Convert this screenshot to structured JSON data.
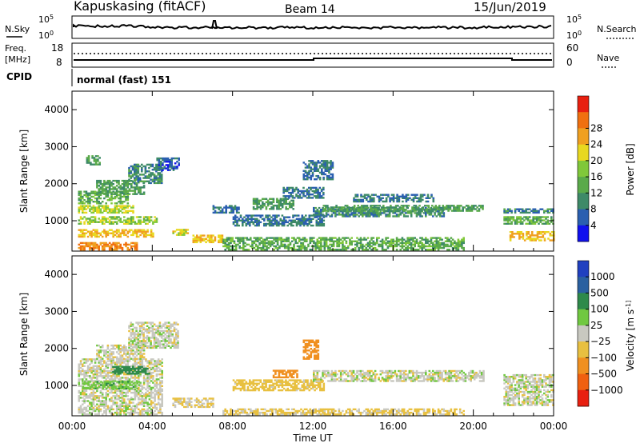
{
  "header": {
    "station": "Kapuskasing (fitACF)",
    "beam": "Beam 14",
    "date": "15/Jun/2019"
  },
  "noise_panel": {
    "left_label": "N.Sky",
    "right_label": "N.Search",
    "left_ticks": [
      "10^5",
      "10^0"
    ],
    "right_ticks": [
      "10^5",
      "10^0"
    ]
  },
  "freq_panel": {
    "left_label_line1": "Freq.",
    "left_label_line2": "[MHz]",
    "right_label": "Nave",
    "left_ticks": [
      "18",
      "8"
    ],
    "right_ticks": [
      "60",
      "0"
    ]
  },
  "cpid_panel": {
    "label": "CPID",
    "text": "normal (fast) 151"
  },
  "chart_data": [
    {
      "type": "heatmap",
      "name": "power",
      "ylabel": "Slant Range [km]",
      "ylim": [
        180,
        4500
      ],
      "yticks": [
        1000,
        2000,
        3000,
        4000
      ],
      "xlim_hours": [
        0,
        24
      ],
      "xticks": [
        "00:00",
        "04:00",
        "08:00",
        "12:00",
        "16:00",
        "20:00",
        "00:00"
      ],
      "colorbar": {
        "label": "Power [dB]",
        "ticks": [
          "4",
          "8",
          "12",
          "16",
          "20",
          "24",
          "28"
        ],
        "colors": [
          "#1010ee",
          "#2a5fb0",
          "#3e8a68",
          "#5aaa4a",
          "#80c83a",
          "#e8d820",
          "#f0a020",
          "#f07010",
          "#e82010"
        ]
      },
      "regions": [
        {
          "t": [
            0.3,
            3.2
          ],
          "r": [
            200,
            400
          ],
          "v": 28
        },
        {
          "t": [
            0.3,
            4.0
          ],
          "r": [
            550,
            750
          ],
          "v": 24
        },
        {
          "t": [
            0.3,
            4.2
          ],
          "r": [
            900,
            1100
          ],
          "v": 18
        },
        {
          "t": [
            0.3,
            3.0
          ],
          "r": [
            1200,
            1400
          ],
          "v": 20
        },
        {
          "t": [
            0.3,
            2.8
          ],
          "r": [
            1450,
            1800
          ],
          "v": 14
        },
        {
          "t": [
            1.2,
            3.6
          ],
          "r": [
            1700,
            2100
          ],
          "v": 12
        },
        {
          "t": [
            2.8,
            4.5
          ],
          "r": [
            2000,
            2500
          ],
          "v": 10
        },
        {
          "t": [
            4.2,
            5.3
          ],
          "r": [
            2350,
            2700
          ],
          "v": 6
        },
        {
          "t": [
            5.0,
            5.8
          ],
          "r": [
            600,
            750
          ],
          "v": 22
        },
        {
          "t": [
            6.0,
            7.5
          ],
          "r": [
            400,
            600
          ],
          "v": 24
        },
        {
          "t": [
            7.0,
            8.3
          ],
          "r": [
            1200,
            1400
          ],
          "v": 8
        },
        {
          "t": [
            8.0,
            12.5
          ],
          "r": [
            850,
            1150
          ],
          "v": 8
        },
        {
          "t": [
            9.0,
            11.0
          ],
          "r": [
            1300,
            1600
          ],
          "v": 12
        },
        {
          "t": [
            10.5,
            12.5
          ],
          "r": [
            1600,
            1900
          ],
          "v": 8
        },
        {
          "t": [
            12.0,
            18.5
          ],
          "r": [
            1100,
            1350
          ],
          "v": 10
        },
        {
          "t": [
            12.5,
            20.5
          ],
          "r": [
            1250,
            1400
          ],
          "v": 12
        },
        {
          "t": [
            14.0,
            18.0
          ],
          "r": [
            1500,
            1700
          ],
          "v": 8
        },
        {
          "t": [
            7.5,
            19.5
          ],
          "r": [
            200,
            520
          ],
          "v": 14
        },
        {
          "t": [
            21.5,
            24.0
          ],
          "r": [
            900,
            1100
          ],
          "v": 14
        },
        {
          "t": [
            21.8,
            24.0
          ],
          "r": [
            450,
            700
          ],
          "v": 24
        },
        {
          "t": [
            21.5,
            24.0
          ],
          "r": [
            1200,
            1300
          ],
          "v": 10
        },
        {
          "t": [
            0.7,
            1.4
          ],
          "r": [
            2500,
            2750
          ],
          "v": 12
        },
        {
          "t": [
            11.5,
            13.0
          ],
          "r": [
            2100,
            2600
          ],
          "v": 8
        }
      ]
    },
    {
      "type": "heatmap",
      "name": "velocity",
      "ylabel": "Slant Range [km]",
      "ylim": [
        180,
        4500
      ],
      "yticks": [
        1000,
        2000,
        3000,
        4000
      ],
      "xlim_hours": [
        0,
        24
      ],
      "xticks": [
        "00:00",
        "04:00",
        "08:00",
        "12:00",
        "16:00",
        "20:00",
        "00:00"
      ],
      "xlabel": "Time UT",
      "colorbar": {
        "label": "Velocity [m s^-1]",
        "ticks": [
          "1000",
          "500",
          "100",
          "25",
          "−25",
          "−100",
          "−500",
          "−1000"
        ],
        "colors": [
          "#2040c0",
          "#2a60a0",
          "#2e8a4a",
          "#70c840",
          "#c8c8c0",
          "#e8c040",
          "#f09020",
          "#f06010",
          "#e82010"
        ]
      },
      "regions": [
        {
          "t": [
            0.3,
            4.5
          ],
          "r": [
            200,
            1700
          ],
          "v": 0
        },
        {
          "t": [
            1.2,
            3.6
          ],
          "r": [
            1700,
            2100
          ],
          "v": 0
        },
        {
          "t": [
            2.8,
            5.3
          ],
          "r": [
            2000,
            2700
          ],
          "v": 0
        },
        {
          "t": [
            0.5,
            3.3
          ],
          "r": [
            900,
            1100
          ],
          "v": 80
        },
        {
          "t": [
            2.0,
            3.8
          ],
          "r": [
            1300,
            1500
          ],
          "v": 200
        },
        {
          "t": [
            5.0,
            7.0
          ],
          "r": [
            400,
            650
          ],
          "v": -40
        },
        {
          "t": [
            7.5,
            19.5
          ],
          "r": [
            200,
            350
          ],
          "v": -40
        },
        {
          "t": [
            8.0,
            12.5
          ],
          "r": [
            850,
            1150
          ],
          "v": -60
        },
        {
          "t": [
            10.0,
            11.2
          ],
          "r": [
            1200,
            1400
          ],
          "v": -150
        },
        {
          "t": [
            11.5,
            12.3
          ],
          "r": [
            1700,
            2200
          ],
          "v": -300
        },
        {
          "t": [
            12.0,
            20.5
          ],
          "r": [
            1100,
            1400
          ],
          "v": 0
        },
        {
          "t": [
            21.5,
            24.0
          ],
          "r": [
            450,
            1300
          ],
          "v": 0
        }
      ]
    }
  ]
}
